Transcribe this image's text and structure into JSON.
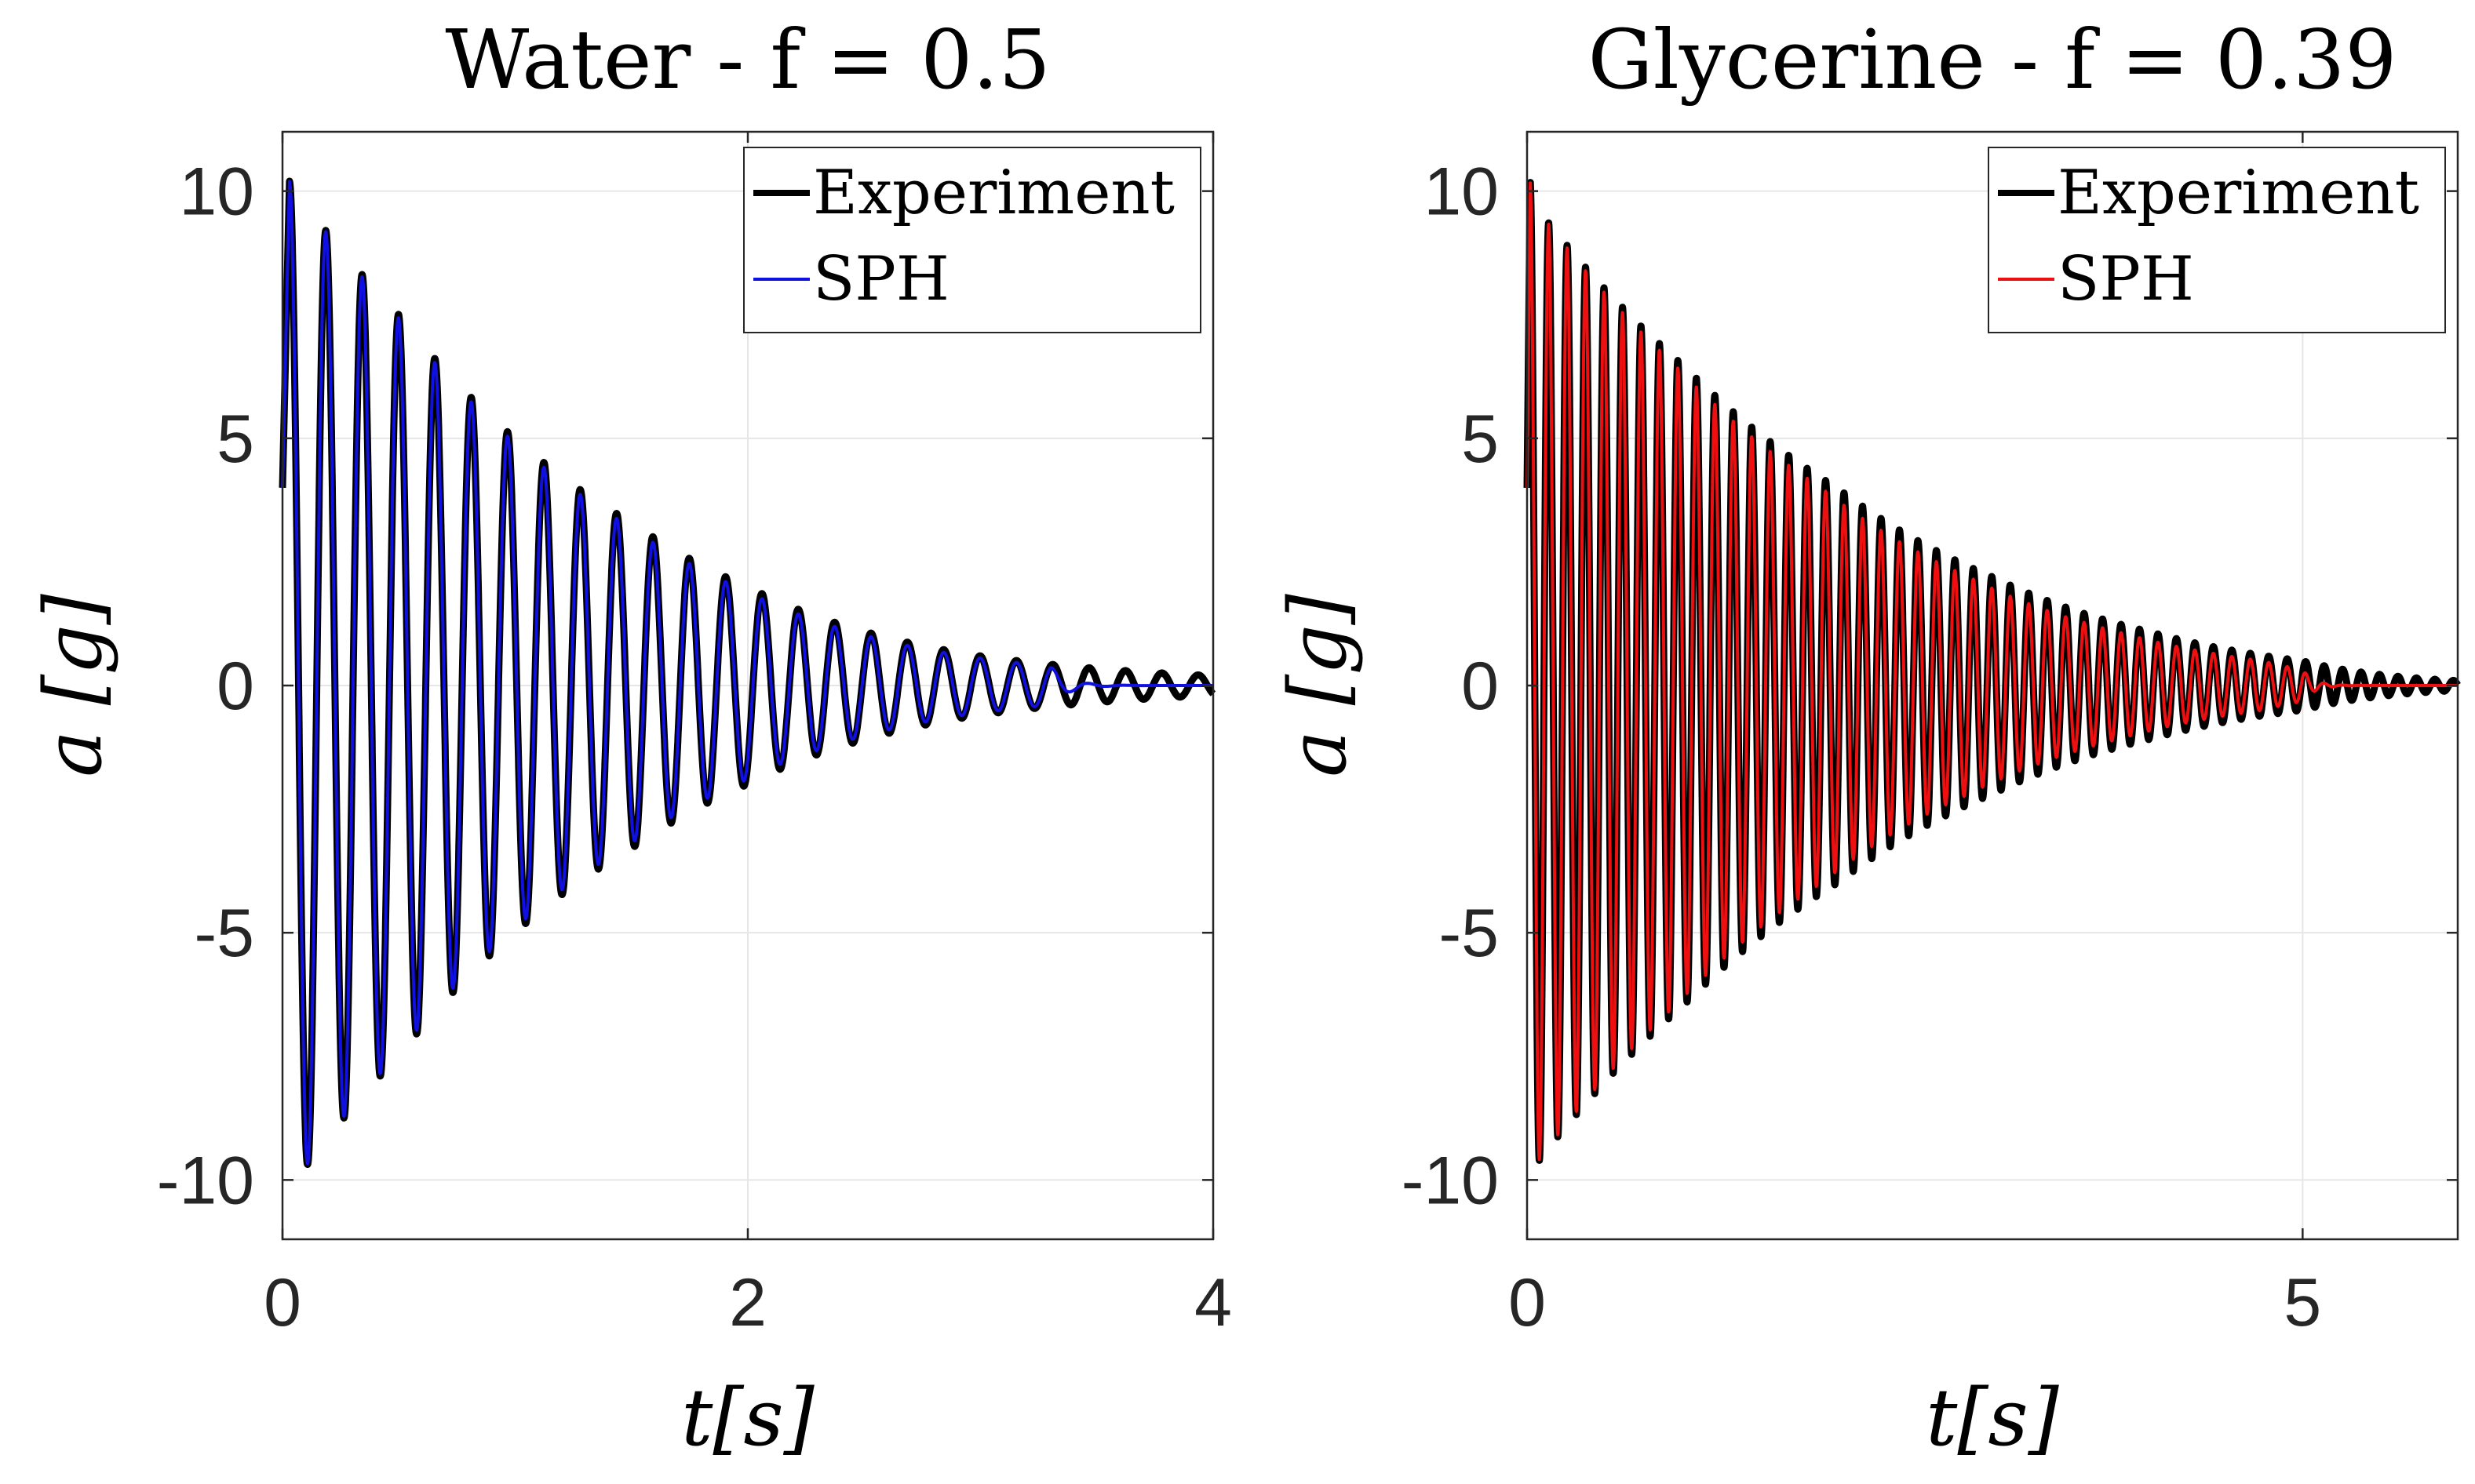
{
  "chart_data": [
    {
      "type": "line",
      "title": "Water - f = 0.5",
      "xlabel": "t[s]",
      "ylabel": "a [g]",
      "xlim": [
        0,
        4
      ],
      "ylim": [
        -11.2,
        11.2
      ],
      "xticks": [
        0,
        2,
        4
      ],
      "xtick_labels": [
        "0",
        "2",
        "4"
      ],
      "yticks": [
        10,
        5,
        0,
        -5,
        -10
      ],
      "ytick_labels": [
        "10",
        "5",
        "0",
        "-5",
        "-10"
      ],
      "grid": true,
      "legend_position": "top-right",
      "signal": {
        "frequency_hz": 6.4,
        "peaks": [
          {
            "t": 0.03,
            "a": 10.2
          },
          {
            "t": 0.09,
            "a": -9.8
          },
          {
            "t": 0.5,
            "a": 7.5
          },
          {
            "t": 1.0,
            "a": 5.0
          },
          {
            "t": 1.5,
            "a": 3.3
          },
          {
            "t": 2.0,
            "a": 2.0
          },
          {
            "t": 2.5,
            "a": 1.1
          },
          {
            "t": 3.0,
            "a": 0.6
          },
          {
            "t": 4.0,
            "a": 0.2
          }
        ]
      },
      "series": [
        {
          "name": "Experiment",
          "color": "#000000",
          "decay_rate": 0.84,
          "stop_time": 4.0
        },
        {
          "name": "SPH",
          "color": "#1010e0",
          "decay_rate": 0.86,
          "stop_time": 3.3
        }
      ]
    },
    {
      "type": "line",
      "title": "Glycerine - f = 0.39",
      "xlabel": "t[s]",
      "ylabel": "a [g]",
      "xlim": [
        0,
        6
      ],
      "ylim": [
        -11.2,
        11.2
      ],
      "xticks": [
        0,
        5
      ],
      "xtick_labels": [
        "0",
        "5"
      ],
      "yticks": [
        10,
        5,
        0,
        -5,
        -10
      ],
      "ytick_labels": [
        "10",
        "5",
        "0",
        "-5",
        "-10"
      ],
      "grid": true,
      "legend_position": "top-right",
      "signal": {
        "frequency_hz": 8.4,
        "peaks": [
          {
            "t": 0.02,
            "a": 10.2
          },
          {
            "t": 0.08,
            "a": -9.6
          },
          {
            "t": 1.0,
            "a": 6.5
          },
          {
            "t": 2.0,
            "a": 4.0
          },
          {
            "t": 3.0,
            "a": 2.2
          },
          {
            "t": 4.0,
            "a": 1.1
          },
          {
            "t": 5.0,
            "a": 0.5
          },
          {
            "t": 6.0,
            "a": 0.1
          }
        ]
      },
      "series": [
        {
          "name": "Experiment",
          "color": "#000000",
          "decay_rate": 0.55,
          "stop_time": 6.0
        },
        {
          "name": "SPH",
          "color": "#ee1010",
          "decay_rate": 0.58,
          "stop_time": 5.0
        }
      ]
    }
  ]
}
